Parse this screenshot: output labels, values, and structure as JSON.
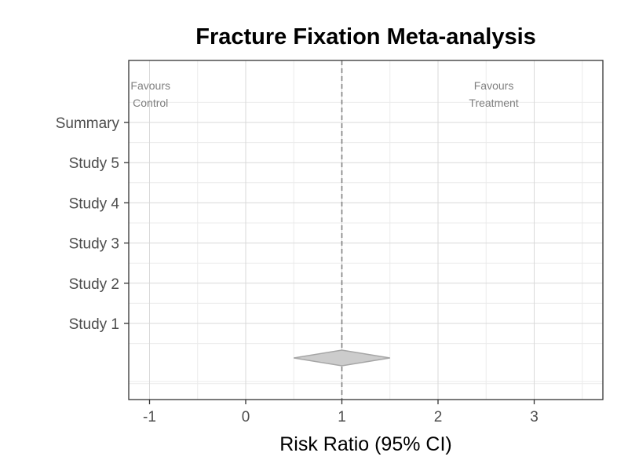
{
  "chart_data": {
    "type": "forest",
    "title": "Fracture Fixation Meta-analysis",
    "xlabel": "Risk Ratio (95% CI)",
    "ylabel": "",
    "xlim": [
      -1.2,
      3.7
    ],
    "x_ticks": [
      -1,
      0,
      1,
      2,
      3
    ],
    "x_tick_labels": [
      "-1",
      "0",
      "1",
      "2",
      "3"
    ],
    "y_labels": [
      "Summary",
      "Study 5",
      "Study 4",
      "Study 3",
      "Study 2",
      "Study 1"
    ],
    "reference_line": 1,
    "summary_diamond": {
      "estimate": 1,
      "lower": 0.5,
      "upper": 1.5
    },
    "annotations": [
      {
        "lines": [
          "Favours",
          "Control"
        ],
        "x": -0.99
      },
      {
        "lines": [
          "Favours",
          "Treatment"
        ],
        "x": 2.58
      }
    ],
    "grid": true,
    "colors": {
      "panel_border": "#333333",
      "grid_major": "#d9d9d9",
      "grid_minor": "#ebebeb",
      "reference_line": "#7f7f7f",
      "diamond_fill": "#cccccc",
      "diamond_stroke": "#a6a6a6"
    }
  }
}
